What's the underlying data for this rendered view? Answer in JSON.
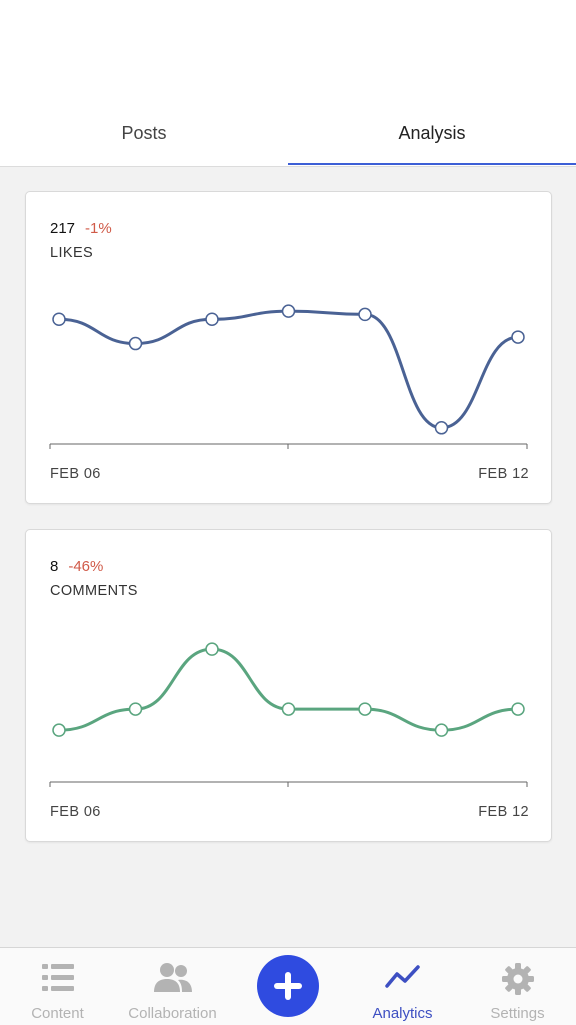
{
  "tabs": [
    {
      "label": "Posts",
      "active": false
    },
    {
      "label": "Analysis",
      "active": true
    }
  ],
  "cards": [
    {
      "value": "217",
      "delta": "-1%",
      "label": "LIKES",
      "color": "#4a6294",
      "x_start": "FEB 06",
      "x_end": "FEB 12",
      "series": [
        {
          "x": "FEB 06",
          "y": 0.77
        },
        {
          "x": "FEB 07",
          "y": 0.62
        },
        {
          "x": "FEB 08",
          "y": 0.77
        },
        {
          "x": "FEB 09",
          "y": 0.82
        },
        {
          "x": "FEB 10",
          "y": 0.8
        },
        {
          "x": "FEB 11",
          "y": 0.1
        },
        {
          "x": "FEB 12",
          "y": 0.66
        }
      ]
    },
    {
      "value": "8",
      "delta": "-46%",
      "label": "COMMENTS",
      "color": "#5aa57f",
      "x_start": "FEB 06",
      "x_end": "FEB 12",
      "series": [
        {
          "x": "FEB 06",
          "y": 0.32
        },
        {
          "x": "FEB 07",
          "y": 0.45
        },
        {
          "x": "FEB 08",
          "y": 0.82
        },
        {
          "x": "FEB 09",
          "y": 0.45
        },
        {
          "x": "FEB 10",
          "y": 0.45
        },
        {
          "x": "FEB 11",
          "y": 0.32
        },
        {
          "x": "FEB 12",
          "y": 0.45
        }
      ]
    }
  ],
  "nav": {
    "items": [
      {
        "label": "Content",
        "icon": "list-icon",
        "active": false
      },
      {
        "label": "Collaboration",
        "icon": "people-icon",
        "active": false
      },
      {
        "label": "Analytics",
        "icon": "trend-icon",
        "active": true
      },
      {
        "label": "Settings",
        "icon": "gear-icon",
        "active": false
      }
    ],
    "add_icon": "plus-icon",
    "accent": "#2f4be0",
    "inactive_color": "#b3b3b3"
  }
}
